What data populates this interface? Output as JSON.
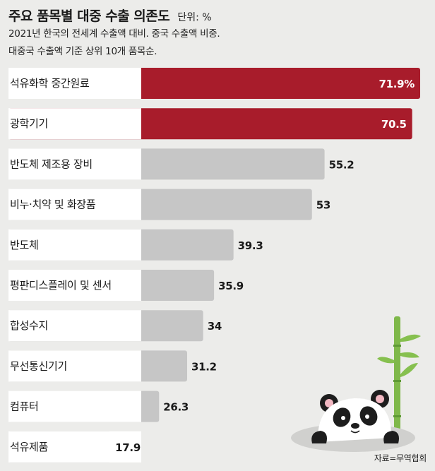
{
  "header": {
    "title": "주요 품목별 대중 수출 의존도",
    "unit": "단위: %",
    "subtitle_line1": "2021년 한국의 전세계 수출액 대비. 중국 수출액 비중.",
    "subtitle_line2": "대중국 수출액 기준 상위 10개 품목순."
  },
  "source": "자료=무역협회",
  "colors": {
    "highlight": "#a81c2b",
    "normal": "#c6c6c6",
    "background": "#ececea"
  },
  "chart_data": {
    "type": "bar",
    "orientation": "horizontal",
    "categories": [
      "석유화학 중간원료",
      "광학기기",
      "반도체 제조용 장비",
      "비누·치약 및 화장품",
      "반도체",
      "평판디스플레이 및 센서",
      "합성수지",
      "무선통신기기",
      "컴퓨터",
      "석유제품"
    ],
    "values": [
      71.9,
      70.5,
      55.2,
      53,
      39.3,
      35.9,
      34,
      31.2,
      26.3,
      17.9
    ],
    "value_labels": [
      "71.9%",
      "70.5",
      "55.2",
      "53",
      "39.3",
      "35.9",
      "34",
      "31.2",
      "26.3",
      "17.9"
    ],
    "highlighted": [
      true,
      true,
      false,
      false,
      false,
      false,
      false,
      false,
      false,
      false
    ],
    "xlim": [
      0,
      100
    ],
    "grid": false,
    "legend": "none"
  }
}
